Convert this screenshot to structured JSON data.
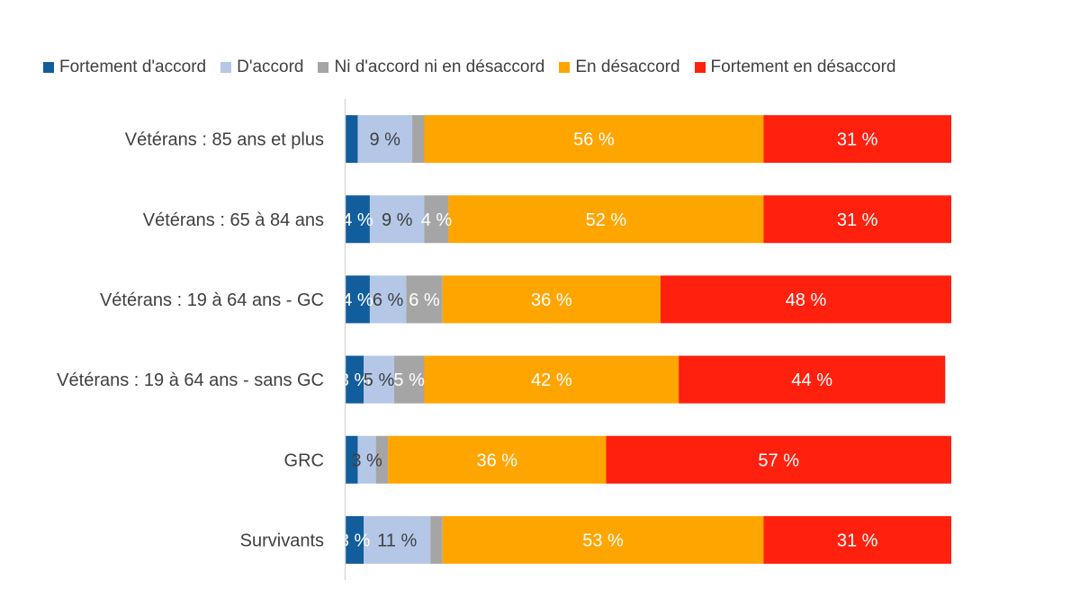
{
  "chart_data": {
    "type": "bar",
    "orientation": "horizontal",
    "stacked": true,
    "title": "",
    "xlabel": "",
    "ylabel": "",
    "xlim": [
      0,
      100
    ],
    "grid": false,
    "legend_position": "top",
    "categories": [
      "Vétérans : 85 ans et plus",
      "Vétérans : 65 à 84 ans",
      "Vétérans : 19 à 64 ans - GC",
      "Vétérans : 19 à 64 ans - sans GC",
      "GRC",
      "Survivants"
    ],
    "series": [
      {
        "name": "Fortement d'accord",
        "color": "#125d9c",
        "label_color": "#ffffff",
        "values": [
          2,
          4,
          4,
          3,
          2,
          3
        ]
      },
      {
        "name": "D'accord",
        "color": "#b4c7e7",
        "label_color": "#404040",
        "values": [
          9,
          9,
          6,
          5,
          3,
          11
        ]
      },
      {
        "name": "Ni d'accord ni en désaccord",
        "color": "#a5a5a5",
        "label_color": "#ffffff",
        "values": [
          2,
          4,
          6,
          5,
          2,
          2
        ]
      },
      {
        "name": "En désaccord",
        "color": "#ffa500",
        "label_color": "#ffffff",
        "values": [
          56,
          52,
          36,
          42,
          36,
          53
        ]
      },
      {
        "name": "Fortement en désaccord",
        "color": "#ff200e",
        "label_color": "#ffffff",
        "values": [
          31,
          31,
          48,
          44,
          57,
          31
        ]
      }
    ],
    "data_label_suffix": " %",
    "data_labels_shown_min": 3
  }
}
